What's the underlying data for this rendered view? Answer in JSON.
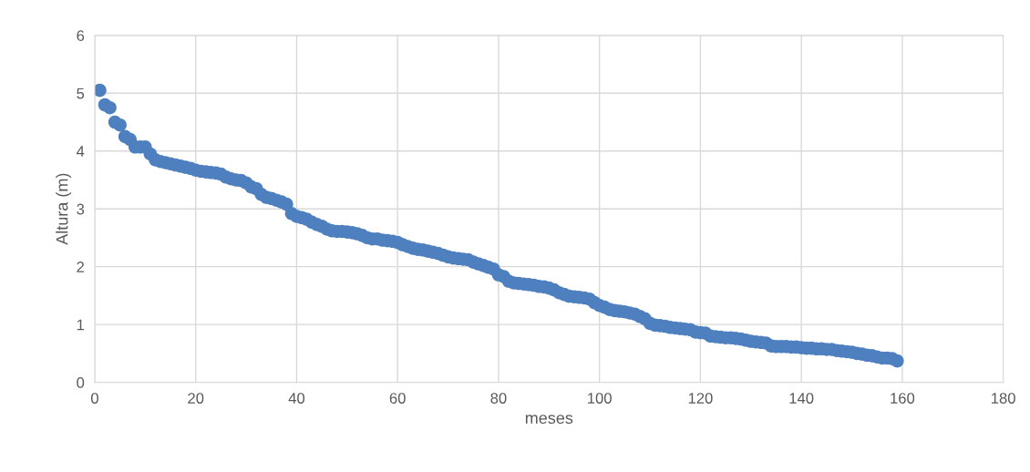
{
  "chart_data": {
    "type": "scatter",
    "xlabel": "meses",
    "ylabel": "Altura (m)",
    "x": [
      1,
      2,
      3,
      4,
      5,
      6,
      7,
      8,
      9,
      10,
      11,
      12,
      13,
      14,
      15,
      16,
      17,
      18,
      19,
      20,
      21,
      22,
      23,
      24,
      25,
      26,
      27,
      28,
      29,
      30,
      31,
      32,
      33,
      34,
      35,
      36,
      37,
      38,
      39,
      40,
      41,
      42,
      43,
      44,
      45,
      46,
      47,
      48,
      49,
      50,
      51,
      52,
      53,
      54,
      55,
      56,
      57,
      58,
      59,
      60,
      61,
      62,
      63,
      64,
      65,
      66,
      67,
      68,
      69,
      70,
      71,
      72,
      73,
      74,
      75,
      76,
      77,
      78,
      79,
      80,
      81,
      82,
      83,
      84,
      85,
      86,
      87,
      88,
      89,
      90,
      91,
      92,
      93,
      94,
      95,
      96,
      97,
      98,
      99,
      100,
      101,
      102,
      103,
      104,
      105,
      106,
      107,
      108,
      109,
      110,
      111,
      112,
      113,
      114,
      115,
      116,
      117,
      118,
      119,
      120,
      121,
      122,
      123,
      124,
      125,
      126,
      127,
      128,
      129,
      130,
      131,
      132,
      133,
      134,
      135,
      136,
      137,
      138,
      139,
      140,
      141,
      142,
      143,
      144,
      145,
      146,
      147,
      148,
      149,
      150,
      151,
      152,
      153,
      154,
      155,
      156,
      157,
      158,
      159
    ],
    "series": [
      {
        "color": "#4e7fbf",
        "values": [
          5.05,
          4.8,
          4.75,
          4.5,
          4.45,
          4.25,
          4.2,
          4.07,
          4.07,
          4.07,
          3.95,
          3.85,
          3.82,
          3.8,
          3.78,
          3.76,
          3.74,
          3.72,
          3.7,
          3.67,
          3.65,
          3.64,
          3.63,
          3.62,
          3.6,
          3.55,
          3.52,
          3.5,
          3.49,
          3.45,
          3.38,
          3.35,
          3.25,
          3.2,
          3.18,
          3.15,
          3.12,
          3.08,
          2.92,
          2.87,
          2.85,
          2.82,
          2.77,
          2.73,
          2.7,
          2.65,
          2.62,
          2.61,
          2.61,
          2.6,
          2.59,
          2.57,
          2.54,
          2.5,
          2.48,
          2.48,
          2.46,
          2.45,
          2.44,
          2.42,
          2.38,
          2.35,
          2.32,
          2.3,
          2.29,
          2.27,
          2.25,
          2.23,
          2.2,
          2.17,
          2.15,
          2.14,
          2.13,
          2.12,
          2.08,
          2.05,
          2.02,
          1.99,
          1.96,
          1.86,
          1.83,
          1.75,
          1.72,
          1.71,
          1.7,
          1.69,
          1.68,
          1.66,
          1.65,
          1.63,
          1.6,
          1.55,
          1.52,
          1.49,
          1.48,
          1.47,
          1.46,
          1.44,
          1.38,
          1.33,
          1.3,
          1.26,
          1.24,
          1.23,
          1.22,
          1.2,
          1.18,
          1.14,
          1.1,
          1.02,
          0.99,
          0.98,
          0.97,
          0.95,
          0.94,
          0.93,
          0.92,
          0.91,
          0.87,
          0.86,
          0.85,
          0.8,
          0.79,
          0.78,
          0.77,
          0.77,
          0.76,
          0.75,
          0.73,
          0.71,
          0.7,
          0.69,
          0.68,
          0.63,
          0.62,
          0.62,
          0.62,
          0.61,
          0.61,
          0.6,
          0.59,
          0.59,
          0.58,
          0.58,
          0.57,
          0.57,
          0.55,
          0.54,
          0.53,
          0.52,
          0.5,
          0.49,
          0.47,
          0.46,
          0.44,
          0.42,
          0.42,
          0.41,
          0.37
        ]
      }
    ],
    "xlim": [
      0,
      180
    ],
    "xticks": [
      0,
      20,
      40,
      60,
      80,
      100,
      120,
      140,
      160,
      180
    ],
    "ylim": [
      0,
      6
    ],
    "yticks": [
      0,
      1,
      2,
      3,
      4,
      5,
      6
    ],
    "grid": true,
    "marker": "circle"
  }
}
